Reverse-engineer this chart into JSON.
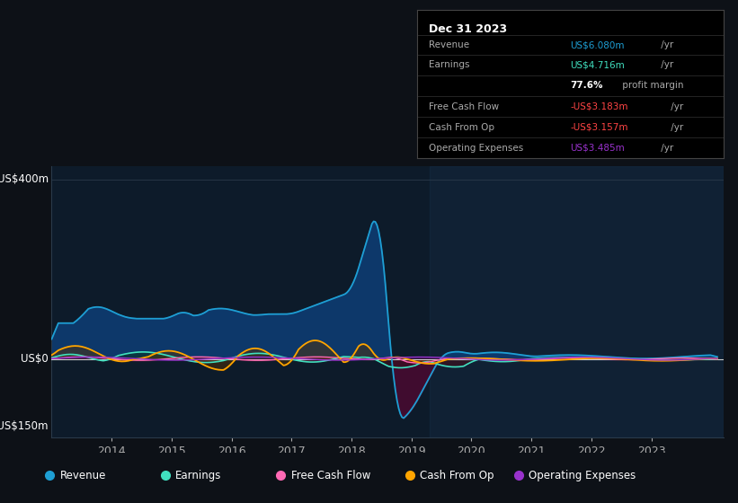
{
  "bg_color": "#0d1117",
  "plot_bg_color": "#0d1b2a",
  "grid_color": "#2a3a4a",
  "text_color": "#aaaaaa",
  "ylabel_400": "US$400m",
  "ylabel_0": "US$0",
  "ylabel_neg150": "-US$150m",
  "ylim": [
    -175,
    430
  ],
  "xlim_start": 2013.0,
  "xlim_end": 2024.2,
  "xticks": [
    2014,
    2015,
    2016,
    2017,
    2018,
    2019,
    2020,
    2021,
    2022,
    2023
  ],
  "series": {
    "revenue": {
      "color": "#1e9fd4",
      "fill_color": "#0d3a6e",
      "label": "Revenue"
    },
    "earnings": {
      "color": "#40e0c0",
      "fill_color": "#1a5a50",
      "label": "Earnings"
    },
    "free_cash_flow": {
      "color": "#ff69b4",
      "fill_color": "#7a1a4a",
      "label": "Free Cash Flow"
    },
    "cash_from_op": {
      "color": "#ffa500",
      "fill_color": "#7a4a00",
      "label": "Cash From Op"
    },
    "operating_expenses": {
      "color": "#9932cc",
      "fill_color": "#4a1a6e",
      "label": "Operating Expenses"
    }
  },
  "info_box": {
    "title": "Dec 31 2023",
    "rows": [
      {
        "label": "Revenue",
        "value": "US$6.080m",
        "suffix": " /yr",
        "val_color": "#1e9fd4"
      },
      {
        "label": "Earnings",
        "value": "US$4.716m",
        "suffix": " /yr",
        "val_color": "#40e0c0"
      },
      {
        "label": "",
        "value": "77.6%",
        "suffix": " profit margin",
        "val_color": "#ffffff",
        "bold_value": true
      },
      {
        "label": "Free Cash Flow",
        "value": "-US$3.183m",
        "suffix": " /yr",
        "val_color": "#ff4444"
      },
      {
        "label": "Cash From Op",
        "value": "-US$3.157m",
        "suffix": " /yr",
        "val_color": "#ff4444"
      },
      {
        "label": "Operating Expenses",
        "value": "US$3.485m",
        "suffix": " /yr",
        "val_color": "#9932cc"
      }
    ]
  },
  "legend": [
    {
      "label": "Revenue",
      "color": "#1e9fd4"
    },
    {
      "label": "Earnings",
      "color": "#40e0c0"
    },
    {
      "label": "Free Cash Flow",
      "color": "#ff69b4"
    },
    {
      "label": "Cash From Op",
      "color": "#ffa500"
    },
    {
      "label": "Operating Expenses",
      "color": "#9932cc"
    }
  ]
}
